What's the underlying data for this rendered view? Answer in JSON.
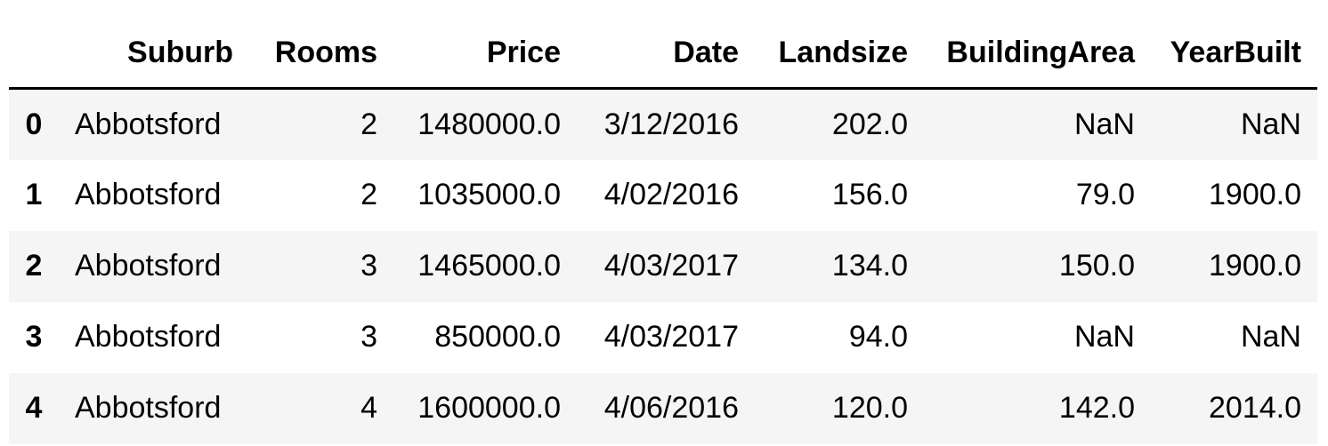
{
  "table": {
    "columns": {
      "index": "",
      "suburb": "Suburb",
      "rooms": "Rooms",
      "price": "Price",
      "date": "Date",
      "landsize": "Landsize",
      "building_area": "BuildingArea",
      "year_built": "YearBuilt"
    },
    "rows": [
      {
        "index": "0",
        "suburb": "Abbotsford",
        "rooms": "2",
        "price": "1480000.0",
        "date": "3/12/2016",
        "landsize": "202.0",
        "building_area": "NaN",
        "year_built": "NaN"
      },
      {
        "index": "1",
        "suburb": "Abbotsford",
        "rooms": "2",
        "price": "1035000.0",
        "date": "4/02/2016",
        "landsize": "156.0",
        "building_area": "79.0",
        "year_built": "1900.0"
      },
      {
        "index": "2",
        "suburb": "Abbotsford",
        "rooms": "3",
        "price": "1465000.0",
        "date": "4/03/2017",
        "landsize": "134.0",
        "building_area": "150.0",
        "year_built": "1900.0"
      },
      {
        "index": "3",
        "suburb": "Abbotsford",
        "rooms": "3",
        "price": "850000.0",
        "date": "4/03/2017",
        "landsize": "94.0",
        "building_area": "NaN",
        "year_built": "NaN"
      },
      {
        "index": "4",
        "suburb": "Abbotsford",
        "rooms": "4",
        "price": "1600000.0",
        "date": "4/06/2016",
        "landsize": "120.0",
        "building_area": "142.0",
        "year_built": "2014.0"
      }
    ]
  }
}
